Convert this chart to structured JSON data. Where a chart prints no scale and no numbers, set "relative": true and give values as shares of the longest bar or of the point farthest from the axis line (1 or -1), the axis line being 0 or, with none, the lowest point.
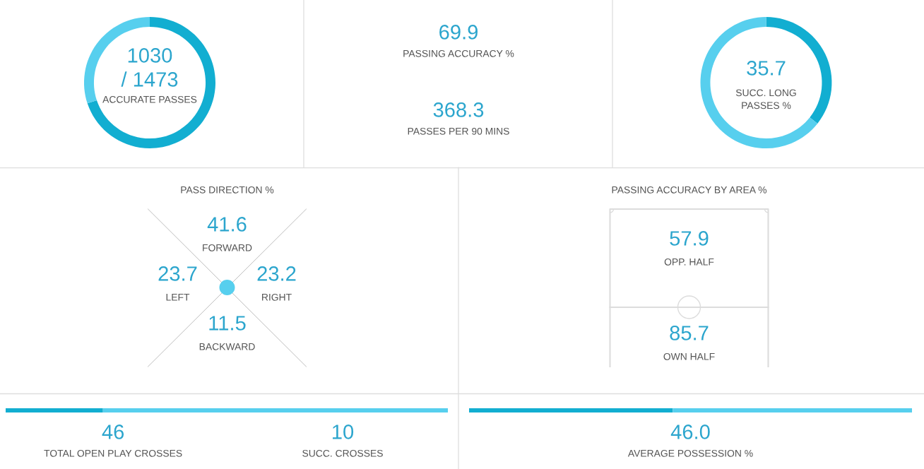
{
  "chart_data": [
    {
      "type": "donut",
      "categories": [
        null,
        null
      ],
      "values": [
        69.9,
        30.1
      ],
      "colors": [
        "#12aed1",
        "#57cfee"
      ],
      "annotations": [
        "1030",
        "/ 1473",
        "ACCURATE PASSES"
      ]
    },
    {
      "type": "other",
      "annotations": [
        "69.9",
        "PASSING ACCURACY %",
        "368.3",
        "PASSES PER 90 MINS"
      ]
    },
    {
      "type": "donut",
      "categories": [
        null,
        null
      ],
      "values": [
        35.7,
        64.3
      ],
      "colors": [
        "#12aed1",
        "#57cfee"
      ],
      "annotations": [
        "35.7",
        "SUCC. LONG\nPASSES %"
      ]
    },
    {
      "type": "other",
      "title": "PASS DIRECTION %",
      "categories": [
        "FORWARD",
        "LEFT",
        "RIGHT",
        "BACKWARD"
      ],
      "values": [
        41.6,
        23.7,
        23.2,
        11.5
      ],
      "data_labels": true
    },
    {
      "type": "other",
      "title": "PASSING ACCURACY BY AREA %",
      "categories": [
        "OPP. HALF",
        "OWN HALF"
      ],
      "values": [
        57.9,
        85.7
      ],
      "data_labels": true
    },
    {
      "type": "bar",
      "orientation": "horizontal",
      "stacked": true,
      "relative": true,
      "categories": [
        null
      ],
      "series": [
        {
          "color": "#12aed1",
          "values": [
            0.22
          ]
        },
        {
          "color": "#57cfee",
          "values": [
            0.78
          ]
        }
      ],
      "annotations": [
        "46",
        "TOTAL OPEN PLAY CROSSES",
        "10",
        "SUCC. CROSSES"
      ]
    },
    {
      "type": "bar",
      "orientation": "horizontal",
      "stacked": true,
      "relative": true,
      "categories": [
        null
      ],
      "series": [
        {
          "color": "#12aed1",
          "values": [
            0.46
          ]
        },
        {
          "color": "#57cfee",
          "values": [
            0.54
          ]
        }
      ],
      "annotations": [
        "46.0",
        "AVERAGE POSSESSION %"
      ]
    }
  ]
}
